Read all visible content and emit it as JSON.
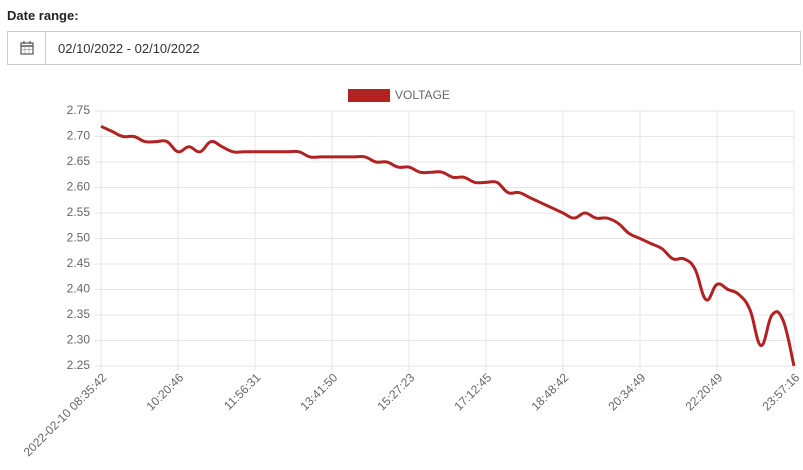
{
  "date_range": {
    "label": "Date range:",
    "value": "02/10/2022 - 02/10/2022"
  },
  "chart_data": {
    "type": "line",
    "categories": [
      "2022-02-10 08:35:42",
      null,
      null,
      null,
      null,
      null,
      null,
      "10:20:46",
      null,
      null,
      null,
      null,
      null,
      null,
      "11:56:31",
      null,
      null,
      null,
      null,
      null,
      null,
      "13:41:50",
      null,
      null,
      null,
      null,
      null,
      null,
      "15:27:23",
      null,
      null,
      null,
      null,
      null,
      null,
      "17:12:45",
      null,
      null,
      null,
      null,
      null,
      null,
      "18:48:42",
      null,
      null,
      null,
      null,
      null,
      null,
      "20:34:49",
      null,
      null,
      null,
      null,
      null,
      null,
      "22:20:49",
      null,
      null,
      null,
      null,
      null,
      null,
      "23:57:16"
    ],
    "series": [
      {
        "name": "VOLTAGE",
        "color": "#b22222",
        "values": [
          2.72,
          2.71,
          2.7,
          2.7,
          2.69,
          2.69,
          2.69,
          2.67,
          2.68,
          2.67,
          2.69,
          2.68,
          2.67,
          2.67,
          2.67,
          2.67,
          2.67,
          2.67,
          2.67,
          2.66,
          2.66,
          2.66,
          2.66,
          2.66,
          2.66,
          2.65,
          2.65,
          2.64,
          2.64,
          2.63,
          2.63,
          2.63,
          2.62,
          2.62,
          2.61,
          2.61,
          2.61,
          2.59,
          2.59,
          2.58,
          2.57,
          2.56,
          2.55,
          2.54,
          2.55,
          2.54,
          2.54,
          2.53,
          2.51,
          2.5,
          2.49,
          2.48,
          2.46,
          2.46,
          2.44,
          2.38,
          2.41,
          2.4,
          2.39,
          2.36,
          2.29,
          2.35,
          2.34,
          2.25
        ]
      }
    ],
    "ylim": [
      2.25,
      2.75
    ],
    "yticks": [
      {
        "value": 2.25,
        "label": "2.25"
      },
      {
        "value": 2.3,
        "label": "2.30"
      },
      {
        "value": 2.35,
        "label": "2.35"
      },
      {
        "value": 2.4,
        "label": "2.40"
      },
      {
        "value": 2.45,
        "label": "2.45"
      },
      {
        "value": 2.5,
        "label": "2.50"
      },
      {
        "value": 2.55,
        "label": "2.55"
      },
      {
        "value": 2.6,
        "label": "2.60"
      },
      {
        "value": 2.65,
        "label": "2.65"
      },
      {
        "value": 2.7,
        "label": "2.70"
      },
      {
        "value": 2.75,
        "label": "2.75"
      }
    ],
    "grid": true,
    "legend": "top"
  }
}
